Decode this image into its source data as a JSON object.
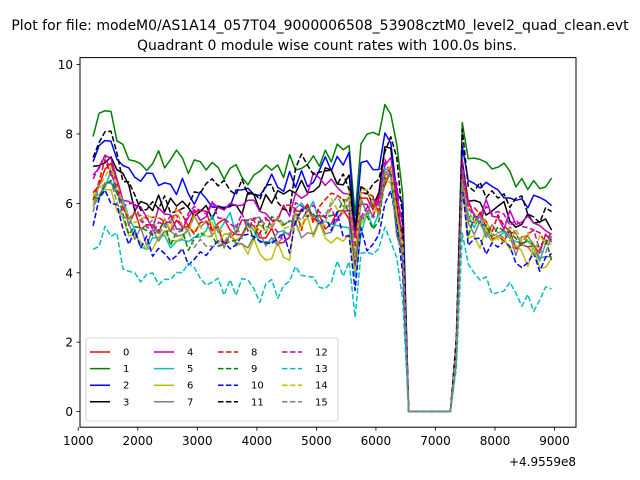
{
  "chart_data": {
    "type": "line",
    "suptitle": "Plot for file: modeM0/AS1A14_057T04_9000006508_53908cztM0_level2_quad_clean.evt",
    "title": "Quadrant 0 module wise count rates with 100.0s bins.",
    "xlabel": "",
    "ylabel": "",
    "x_offset_label": "+4.9559e8",
    "xlim": [
      1030,
      9360
    ],
    "ylim": [
      -0.45,
      10.2
    ],
    "x_ticks": [
      1000,
      2000,
      3000,
      4000,
      5000,
      6000,
      7000,
      8000,
      9000
    ],
    "x_tick_labels": [
      "1000",
      "2000",
      "3000",
      "4000",
      "5000",
      "6000",
      "7000",
      "8000",
      "9000"
    ],
    "y_ticks": [
      0,
      2,
      4,
      6,
      8,
      10
    ],
    "y_tick_labels": [
      "0",
      "2",
      "4",
      "6",
      "8",
      "10"
    ],
    "grid": false,
    "legend_position": "lower-left",
    "legend_columns": 4,
    "x": [
      1250,
      9000
    ],
    "series": [
      {
        "name": "0",
        "color": "#ff0000",
        "dash": "solid",
        "base": 5.9
      },
      {
        "name": "1",
        "color": "#008000",
        "dash": "solid",
        "base": 7.6
      },
      {
        "name": "2",
        "color": "#0000ff",
        "dash": "solid",
        "base": 7.0
      },
      {
        "name": "3",
        "color": "#000000",
        "dash": "solid",
        "base": 6.5
      },
      {
        "name": "4",
        "color": "#bf00bf",
        "dash": "solid",
        "base": 6.3
      },
      {
        "name": "5",
        "color": "#00bfbf",
        "dash": "solid",
        "base": 5.8
      },
      {
        "name": "6",
        "color": "#bfbf00",
        "dash": "solid",
        "base": 5.5
      },
      {
        "name": "7",
        "color": "#808080",
        "dash": "solid",
        "base": 5.7
      },
      {
        "name": "8",
        "color": "#ff0000",
        "dash": "dashed",
        "base": 6.0
      },
      {
        "name": "9",
        "color": "#008000",
        "dash": "dashed",
        "base": 5.7
      },
      {
        "name": "10",
        "color": "#0000ff",
        "dash": "dashed",
        "base": 5.4
      },
      {
        "name": "11",
        "color": "#000000",
        "dash": "dashed",
        "base": 6.9
      },
      {
        "name": "12",
        "color": "#bf00bf",
        "dash": "dashed",
        "base": 6.1
      },
      {
        "name": "13",
        "color": "#00bfbf",
        "dash": "dashed",
        "base": 4.3
      },
      {
        "name": "14",
        "color": "#bfbf00",
        "dash": "dashed",
        "base": 5.9
      },
      {
        "name": "15",
        "color": "#808080",
        "dash": "dashed",
        "base": 5.8
      }
    ]
  }
}
